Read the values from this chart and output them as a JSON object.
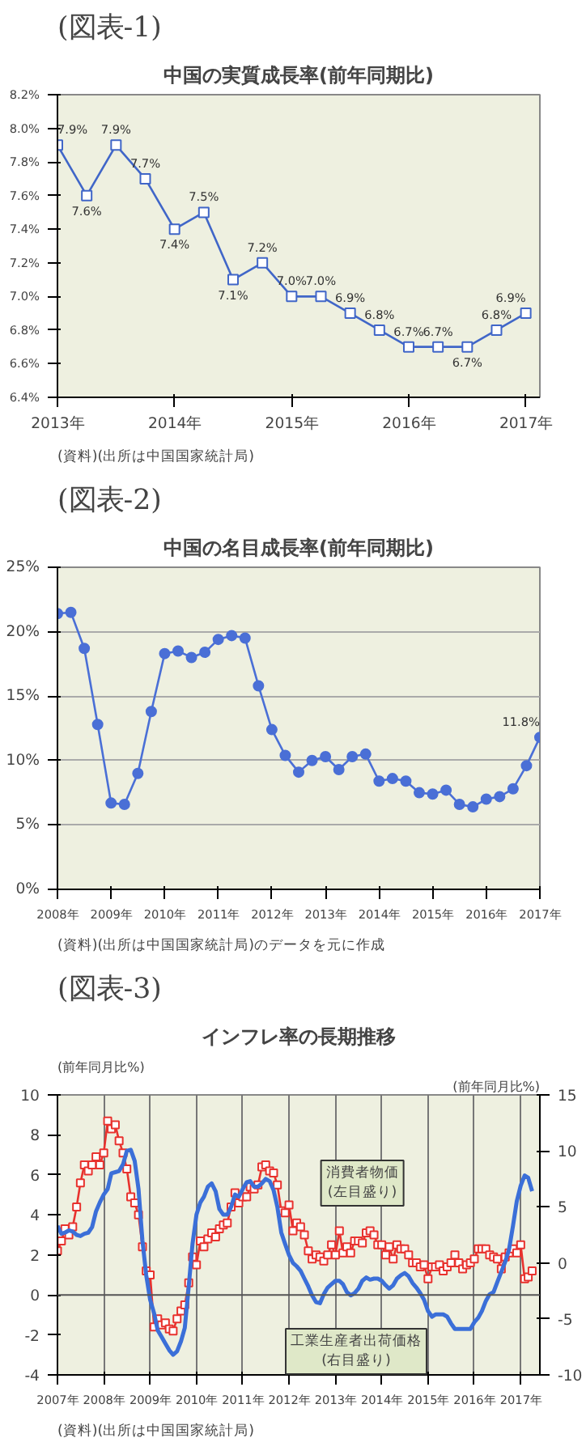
{
  "chart_data": [
    {
      "type": "line",
      "title": "中国の実質成長率(前年同期比)",
      "annotations": [
        "(図表-1)",
        "(資料)(出所は中国国家統計局)"
      ],
      "x": [
        2013,
        2013.25,
        2013.5,
        2013.75,
        2014,
        2014.25,
        2014.5,
        2014.75,
        2015,
        2015.25,
        2015.5,
        2015.75,
        2016,
        2016.25,
        2016.5,
        2016.75,
        2017
      ],
      "series": [
        {
          "color": "#4066c8",
          "values": [
            7.9,
            7.6,
            7.9,
            7.7,
            7.4,
            7.5,
            7.1,
            7.2,
            7.0,
            7.0,
            6.9,
            6.8,
            6.7,
            6.7,
            6.7,
            6.8,
            6.9
          ],
          "value_labels": [
            "7.9%",
            "7.6%",
            "7.9%",
            "7.7%",
            "7.4%",
            "7.5%",
            "7.1%",
            "7.2%",
            "7.0%",
            "7.0%",
            "6.9%",
            "6.8%",
            "6.7%",
            "6.7%",
            "6.7%",
            "6.8%",
            "6.9%"
          ]
        }
      ],
      "marker": "square",
      "grid": false,
      "xlim": [
        2013,
        2017.12
      ],
      "xticks": [
        {
          "value": 2013,
          "label": "2013年"
        },
        {
          "value": 2014,
          "label": "2014年"
        },
        {
          "value": 2015,
          "label": "2015年"
        },
        {
          "value": 2016,
          "label": "2016年"
        },
        {
          "value": 2017,
          "label": "2017年"
        }
      ],
      "ylim": [
        6.4,
        8.2
      ],
      "yticks": [
        {
          "value": 6.4,
          "label": "6.4%"
        },
        {
          "value": 6.6,
          "label": "6.6%"
        },
        {
          "value": 6.8,
          "label": "6.8%"
        },
        {
          "value": 7.0,
          "label": "7.0%"
        },
        {
          "value": 7.2,
          "label": "7.2%"
        },
        {
          "value": 7.4,
          "label": "7.4%"
        },
        {
          "value": 7.6,
          "label": "7.6%"
        },
        {
          "value": 7.8,
          "label": "7.8%"
        },
        {
          "value": 8.0,
          "label": "8.0%"
        },
        {
          "value": 8.2,
          "label": "8.2%"
        }
      ]
    },
    {
      "type": "line",
      "title": "中国の名目成長率(前年同期比)",
      "annotations": [
        "(図表-2)",
        "(資料)(出所は中国国家統計局)のデータを元に作成"
      ],
      "x": [
        2008,
        2008.25,
        2008.5,
        2008.75,
        2009,
        2009.25,
        2009.5,
        2009.75,
        2010,
        2010.25,
        2010.5,
        2010.75,
        2011,
        2011.25,
        2011.5,
        2011.75,
        2012,
        2012.25,
        2012.5,
        2012.75,
        2013,
        2013.25,
        2013.5,
        2013.75,
        2014,
        2014.25,
        2014.5,
        2014.75,
        2015,
        2015.25,
        2015.5,
        2015.75,
        2016,
        2016.25,
        2016.5,
        2016.75,
        2017
      ],
      "series": [
        {
          "color": "#4a6fd6",
          "values": [
            21.4,
            21.5,
            18.7,
            12.8,
            6.7,
            6.6,
            9.0,
            13.8,
            18.3,
            18.5,
            18.0,
            18.4,
            19.4,
            19.7,
            19.5,
            15.8,
            12.4,
            10.4,
            9.1,
            10.0,
            10.3,
            9.3,
            10.3,
            10.5,
            8.4,
            8.6,
            8.4,
            7.5,
            7.4,
            7.7,
            6.6,
            6.4,
            7.0,
            7.2,
            7.8,
            9.6,
            11.8
          ],
          "value_labels": [
            null,
            null,
            null,
            null,
            null,
            null,
            null,
            null,
            null,
            null,
            null,
            null,
            null,
            null,
            null,
            null,
            null,
            null,
            null,
            null,
            null,
            null,
            null,
            null,
            null,
            null,
            null,
            null,
            null,
            null,
            null,
            null,
            null,
            null,
            null,
            null,
            "11.8%"
          ]
        }
      ],
      "marker": "circle",
      "grid": "y",
      "xlim": [
        2008,
        2017
      ],
      "xticks": [
        {
          "value": 2008,
          "label": "2008年"
        },
        {
          "value": 2009,
          "label": "2009年"
        },
        {
          "value": 2010,
          "label": "2010年"
        },
        {
          "value": 2011,
          "label": "2011年"
        },
        {
          "value": 2012,
          "label": "2012年"
        },
        {
          "value": 2013,
          "label": "2013年"
        },
        {
          "value": 2014,
          "label": "2014年"
        },
        {
          "value": 2015,
          "label": "2015年"
        },
        {
          "value": 2016,
          "label": "2016年"
        },
        {
          "value": 2017,
          "label": "2017年"
        }
      ],
      "ylim": [
        0,
        25
      ],
      "yticks": [
        {
          "value": 0,
          "label": "0%"
        },
        {
          "value": 5,
          "label": "5%"
        },
        {
          "value": 10,
          "label": "10%"
        },
        {
          "value": 15,
          "label": "15%"
        },
        {
          "value": 20,
          "label": "20%"
        },
        {
          "value": 25,
          "label": "25%"
        }
      ]
    },
    {
      "type": "line",
      "title": "インフレ率の長期推移",
      "ylabel": "(前年同月比%)",
      "y2label": "(前年同月比%)",
      "annotations": [
        "(図表-3)",
        "(資料)(出所は中国国家統計局)",
        {
          "text": "消費者物価\n(左目盛り)",
          "x": "2014-01",
          "y": 3.0
        },
        {
          "text": "工業生産者出荷価格\n(右目盛り)",
          "x": "2012-10",
          "y": -0.4
        }
      ],
      "x": [
        "2007-01",
        "2007-02",
        "2007-03",
        "2007-04",
        "2007-05",
        "2007-06",
        "2007-07",
        "2007-08",
        "2007-09",
        "2007-10",
        "2007-11",
        "2007-12",
        "2008-01",
        "2008-02",
        "2008-03",
        "2008-04",
        "2008-05",
        "2008-06",
        "2008-07",
        "2008-08",
        "2008-09",
        "2008-10",
        "2008-11",
        "2008-12",
        "2009-01",
        "2009-02",
        "2009-03",
        "2009-04",
        "2009-05",
        "2009-06",
        "2009-07",
        "2009-08",
        "2009-09",
        "2009-10",
        "2009-11",
        "2009-12",
        "2010-01",
        "2010-02",
        "2010-03",
        "2010-04",
        "2010-05",
        "2010-06",
        "2010-07",
        "2010-08",
        "2010-09",
        "2010-10",
        "2010-11",
        "2010-12",
        "2011-01",
        "2011-02",
        "2011-03",
        "2011-04",
        "2011-05",
        "2011-06",
        "2011-07",
        "2011-08",
        "2011-09",
        "2011-10",
        "2011-11",
        "2011-12",
        "2012-01",
        "2012-02",
        "2012-03",
        "2012-04",
        "2012-05",
        "2012-06",
        "2012-07",
        "2012-08",
        "2012-09",
        "2012-10",
        "2012-11",
        "2012-12",
        "2013-01",
        "2013-02",
        "2013-03",
        "2013-04",
        "2013-05",
        "2013-06",
        "2013-07",
        "2013-08",
        "2013-09",
        "2013-10",
        "2013-11",
        "2013-12",
        "2014-01",
        "2014-02",
        "2014-03",
        "2014-04",
        "2014-05",
        "2014-06",
        "2014-07",
        "2014-08",
        "2014-09",
        "2014-10",
        "2014-11",
        "2014-12",
        "2015-01",
        "2015-02",
        "2015-03",
        "2015-04",
        "2015-05",
        "2015-06",
        "2015-07",
        "2015-08",
        "2015-09",
        "2015-10",
        "2015-11",
        "2015-12",
        "2016-01",
        "2016-02",
        "2016-03",
        "2016-04",
        "2016-05",
        "2016-06",
        "2016-07",
        "2016-08",
        "2016-09",
        "2016-10",
        "2016-11",
        "2016-12",
        "2017-01",
        "2017-02",
        "2017-03",
        "2017-04"
      ],
      "series": [
        {
          "color": "#e8322e",
          "marker": "square",
          "values": [
            2.2,
            2.7,
            3.3,
            3.0,
            3.4,
            4.4,
            5.6,
            6.5,
            6.2,
            6.5,
            6.9,
            6.5,
            7.1,
            8.7,
            8.3,
            8.5,
            7.7,
            7.1,
            6.3,
            4.9,
            4.6,
            4.0,
            2.4,
            1.2,
            1.0,
            -1.6,
            -1.2,
            -1.5,
            -1.4,
            -1.7,
            -1.8,
            -1.2,
            -0.8,
            -0.5,
            0.6,
            1.9,
            1.5,
            2.7,
            2.4,
            2.8,
            3.1,
            2.9,
            3.3,
            3.5,
            3.6,
            4.4,
            5.1,
            4.6,
            4.9,
            4.9,
            5.4,
            5.3,
            5.5,
            6.4,
            6.5,
            6.2,
            6.1,
            5.5,
            4.2,
            4.1,
            4.5,
            3.2,
            3.6,
            3.4,
            3.0,
            2.2,
            1.8,
            2.0,
            1.9,
            1.7,
            2.0,
            2.5,
            2.0,
            3.2,
            2.1,
            2.4,
            2.1,
            2.7,
            2.7,
            2.6,
            3.1,
            3.2,
            3.0,
            2.5,
            2.5,
            2.0,
            2.4,
            1.8,
            2.5,
            2.3,
            2.3,
            2.0,
            1.6,
            1.6,
            1.4,
            1.5,
            0.8,
            1.4,
            1.4,
            1.5,
            1.2,
            1.4,
            1.6,
            2.0,
            1.6,
            1.3,
            1.5,
            1.6,
            1.8,
            2.3,
            2.3,
            2.3,
            2.0,
            1.9,
            1.8,
            1.3,
            1.9,
            2.1,
            2.3,
            2.1,
            2.5,
            0.8,
            0.9,
            1.2
          ]
        },
        {
          "color": "#3b6fd8",
          "marker": "none",
          "axis": "y2",
          "values": [
            3.3,
            2.6,
            2.7,
            2.9,
            2.8,
            2.5,
            2.4,
            2.6,
            2.7,
            3.2,
            4.6,
            5.4,
            6.1,
            6.6,
            8.0,
            8.1,
            8.2,
            8.8,
            10.0,
            10.1,
            9.1,
            6.6,
            2.0,
            -1.1,
            -3.3,
            -4.5,
            -6.0,
            -6.6,
            -7.2,
            -7.8,
            -8.2,
            -7.9,
            -7.0,
            -5.8,
            -2.1,
            1.7,
            4.3,
            5.4,
            5.9,
            6.8,
            7.1,
            6.4,
            4.8,
            4.3,
            4.3,
            5.0,
            6.1,
            5.9,
            6.6,
            7.2,
            7.3,
            6.8,
            6.8,
            7.1,
            7.5,
            7.3,
            6.5,
            5.0,
            2.7,
            1.7,
            0.7,
            0.0,
            -0.3,
            -0.7,
            -1.4,
            -2.1,
            -2.9,
            -3.5,
            -3.6,
            -2.8,
            -2.2,
            -1.9,
            -1.6,
            -1.6,
            -1.9,
            -2.6,
            -2.9,
            -2.7,
            -2.3,
            -1.6,
            -1.3,
            -1.5,
            -1.4,
            -1.4,
            -1.6,
            -2.0,
            -2.3,
            -2.0,
            -1.4,
            -1.1,
            -0.9,
            -1.2,
            -1.8,
            -2.2,
            -2.7,
            -3.3,
            -4.3,
            -4.8,
            -4.6,
            -4.6,
            -4.6,
            -4.8,
            -5.4,
            -5.9,
            -5.9,
            -5.9,
            -5.9,
            -5.9,
            -5.3,
            -4.9,
            -4.3,
            -3.4,
            -2.8,
            -2.6,
            -1.7,
            -0.8,
            0.1,
            1.2,
            3.3,
            5.5,
            6.9,
            7.8,
            7.6,
            6.4
          ]
        }
      ],
      "grid": "x",
      "ref_lines": [
        {
          "axis": "y",
          "value": 0,
          "color": "#555555"
        }
      ],
      "xlim": [
        "2007-01",
        "2017-06"
      ],
      "xticks": [
        {
          "value": "2007",
          "label": "2007年"
        },
        {
          "value": "2008",
          "label": "2008年"
        },
        {
          "value": "2009",
          "label": "2009年"
        },
        {
          "value": "2010",
          "label": "2010年"
        },
        {
          "value": "2011",
          "label": "2011年"
        },
        {
          "value": "2012",
          "label": "2012年"
        },
        {
          "value": "2013",
          "label": "2013年"
        },
        {
          "value": "2014",
          "label": "2014年"
        },
        {
          "value": "2015",
          "label": "2015年"
        },
        {
          "value": "2016",
          "label": "2016年"
        },
        {
          "value": "2017",
          "label": "2017年"
        }
      ],
      "ylim": [
        -4,
        10
      ],
      "yticks": [
        -4,
        -2,
        0,
        2,
        4,
        6,
        8,
        10
      ],
      "y2lim": [
        -10,
        15
      ],
      "y2ticks": [
        -10,
        -5,
        0,
        5,
        10,
        15
      ]
    }
  ]
}
